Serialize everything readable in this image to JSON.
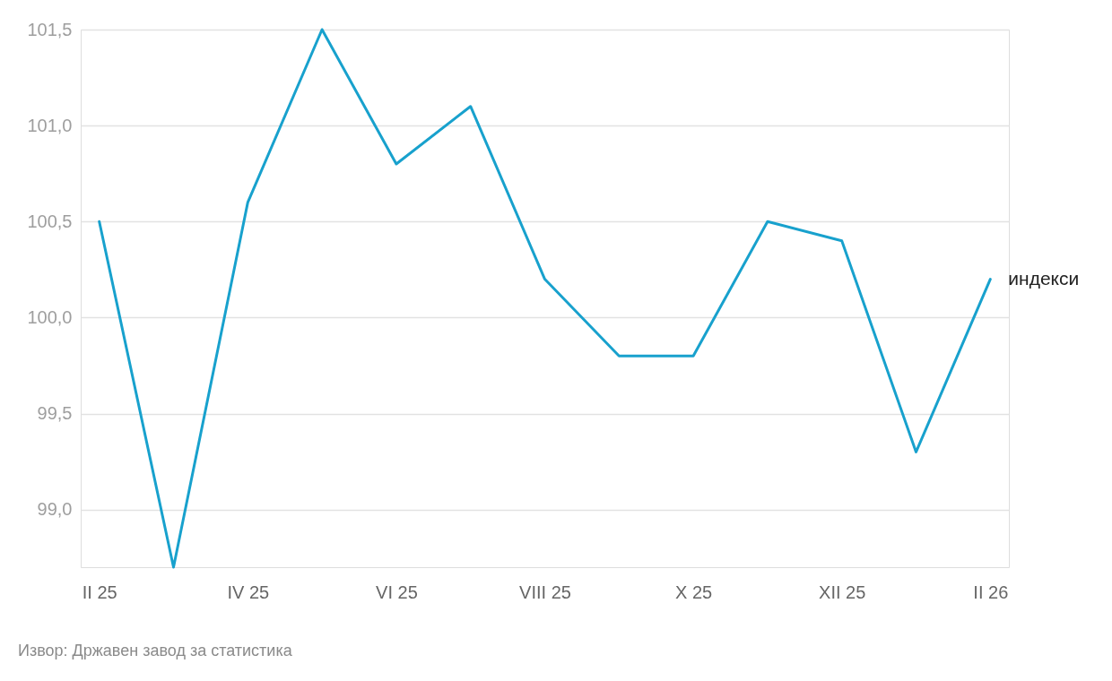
{
  "chart_data": {
    "type": "line",
    "categories": [
      "II 25",
      null,
      "IV 25",
      null,
      "VI 25",
      null,
      "VIII 25",
      null,
      "X 25",
      null,
      "XII 25",
      null,
      "II 26"
    ],
    "series": [
      {
        "name": "индекси",
        "color": "#18a1cd",
        "values": [
          100.5,
          98.7,
          100.6,
          101.5,
          100.8,
          101.1,
          100.2,
          99.8,
          99.8,
          100.5,
          100.4,
          99.3,
          100.2
        ]
      }
    ],
    "ylim": [
      98.7,
      101.5
    ],
    "yticks": [
      {
        "value": 99,
        "label": "99,0"
      },
      {
        "value": 99.5,
        "label": "99,5"
      },
      {
        "value": 100,
        "label": "100,0"
      },
      {
        "value": 100.5,
        "label": "100,5"
      },
      {
        "value": 101,
        "label": "101,0"
      },
      {
        "value": 101.5,
        "label": "101,5"
      }
    ],
    "grid": "y",
    "annotations": [
      "Извор: Државен завод за статистика"
    ]
  }
}
